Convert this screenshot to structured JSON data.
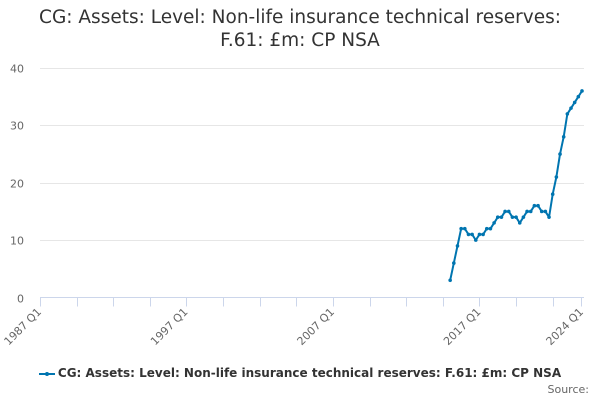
{
  "title_lines": [
    "CG: Assets: Level: Non-life insurance technical reserves:",
    "F.61: £m: CP NSA"
  ],
  "legend": {
    "label": "CG: Assets: Level: Non-life insurance technical reserves: F.61: £m: CP NSA"
  },
  "source": {
    "label": "Source:"
  },
  "colors": {
    "series": "#0075b0",
    "grid": "#e6e6e6",
    "axis": "#ccd6eb",
    "tick_text": "#666666"
  },
  "chart_data": {
    "type": "line",
    "title": "CG: Assets: Level: Non-life insurance technical reserves: F.61: £m: CP NSA",
    "xlabel": "",
    "ylabel": "",
    "ylim": [
      0,
      40
    ],
    "yticks": [
      0,
      10,
      20,
      30,
      40
    ],
    "x_range": [
      "1987 Q1",
      "2024 Q1"
    ],
    "xtick_labels": [
      "1987 Q1",
      "1997 Q1",
      "2007 Q1",
      "2017 Q1",
      "2024 Q1"
    ],
    "grid": true,
    "legend_position": "bottom",
    "series": [
      {
        "name": "CG: Assets: Level: Non-life insurance technical reserves: F.61: £m: CP NSA",
        "x": [
          "2015 Q1",
          "2015 Q2",
          "2015 Q3",
          "2015 Q4",
          "2016 Q1",
          "2016 Q2",
          "2016 Q3",
          "2016 Q4",
          "2017 Q1",
          "2017 Q2",
          "2017 Q3",
          "2017 Q4",
          "2018 Q1",
          "2018 Q2",
          "2018 Q3",
          "2018 Q4",
          "2019 Q1",
          "2019 Q2",
          "2019 Q3",
          "2019 Q4",
          "2020 Q1",
          "2020 Q2",
          "2020 Q3",
          "2020 Q4",
          "2021 Q1",
          "2021 Q2",
          "2021 Q3",
          "2021 Q4",
          "2022 Q1",
          "2022 Q2",
          "2022 Q3",
          "2022 Q4",
          "2023 Q1",
          "2023 Q2",
          "2023 Q3",
          "2023 Q4",
          "2024 Q1"
        ],
        "values": [
          3,
          6,
          9,
          12,
          12,
          11,
          11,
          10,
          11,
          11,
          12,
          12,
          13,
          14,
          14,
          15,
          15,
          14,
          14,
          13,
          14,
          15,
          15,
          16,
          16,
          15,
          15,
          14,
          18,
          21,
          25,
          28,
          32,
          33,
          34,
          35,
          36
        ]
      }
    ]
  }
}
